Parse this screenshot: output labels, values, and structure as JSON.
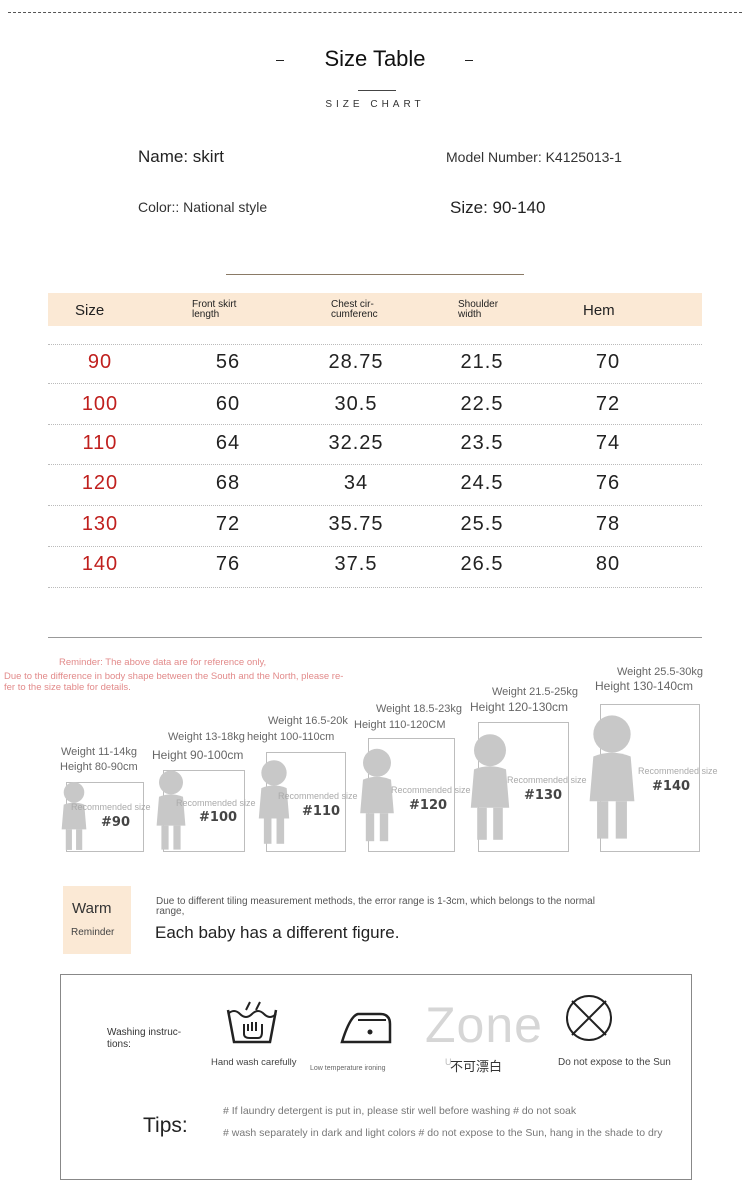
{
  "header": {
    "title": "Size Table",
    "subtitle": "SIZE CHART"
  },
  "info": {
    "name": "Name: skirt",
    "model": "Model Number: K4125013-1",
    "color": "Color:: National style",
    "size_range": "Size: 90-140"
  },
  "table": {
    "headers": {
      "size": "Size",
      "front_l1": "Front skirt",
      "front_l2": "length",
      "chest_l1": "Chest cir-",
      "chest_l2": "cumferenc",
      "shoulder_l1": "Shoulder",
      "shoulder_l2": "width",
      "hem": "Hem"
    },
    "rows": [
      {
        "size": "90",
        "front": "56",
        "chest": "28.75",
        "shoulder": "21.5",
        "hem": "70"
      },
      {
        "size": "100",
        "front": "60",
        "chest": "30.5",
        "shoulder": "22.5",
        "hem": "72"
      },
      {
        "size": "110",
        "front": "64",
        "chest": "32.25",
        "shoulder": "23.5",
        "hem": "74"
      },
      {
        "size": "120",
        "front": "68",
        "chest": "34",
        "shoulder": "24.5",
        "hem": "76"
      },
      {
        "size": "130",
        "front": "72",
        "chest": "35.75",
        "shoulder": "25.5",
        "hem": "78"
      },
      {
        "size": "140",
        "front": "76",
        "chest": "37.5",
        "shoulder": "26.5",
        "hem": "80"
      }
    ]
  },
  "reminder": {
    "line1": "Reminder: The above data are for reference only,",
    "line2": "Due to the difference in body shape between the South and the North, please re-",
    "line3": "fer to the size table for details."
  },
  "kids": [
    {
      "weight": "Weight 11-14kg",
      "height": "Height 80-90cm",
      "rec": "Recommended size",
      "size": "#90"
    },
    {
      "weight": "Weight 13-18kg",
      "height": "Height 90-100cm",
      "rec": "Recommended size",
      "size": "#100"
    },
    {
      "weight": "Weight 16.5-20k",
      "height": "height 100-110cm",
      "rec": "Recommended size",
      "size": "#110"
    },
    {
      "weight": "Weight 18.5-23kg",
      "height": "Height 110-120CM",
      "rec": "Recommended size",
      "size": "#120"
    },
    {
      "weight": "Weight 21.5-25kg",
      "height": "Height 120-130cm",
      "rec": "Recommended size",
      "size": "#130"
    },
    {
      "weight": "Weight 25.5-30kg",
      "height": "Height 130-140cm",
      "rec": "Recommended size",
      "size": "#140"
    }
  ],
  "warm": {
    "title": "Warm",
    "subtitle": "Reminder",
    "note_l1": "Due to different tiling measurement methods, the error range is 1-3cm, which belongs to the normal",
    "note_l2": "range,",
    "main": "Each baby has a different figure."
  },
  "care": {
    "label_l1": "Washing instruc-",
    "label_l2": "tions:",
    "items": [
      {
        "icon": "hand-wash-icon",
        "label": "Hand wash carefully"
      },
      {
        "icon": "iron-icon",
        "label": "Low temperature ironing"
      },
      {
        "icon": "zone-watermark",
        "label": "不可漂白",
        "watermark": "Zone",
        "faint": "U"
      },
      {
        "icon": "no-sun-icon",
        "label": "Do not expose to the Sun"
      }
    ],
    "tips_label": "Tips:",
    "tips": [
      "# If laundry detergent is put in, please stir well before washing # do not soak",
      "# wash separately in dark and light colors # do not expose to the Sun, hang in the shade to dry"
    ]
  }
}
